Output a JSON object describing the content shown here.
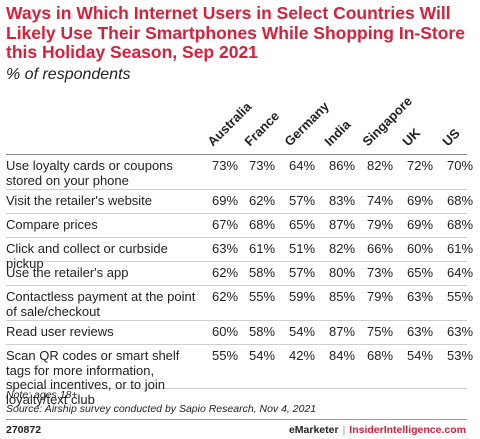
{
  "chart_data": {
    "type": "table",
    "title": "Ways in Which Internet Users in Select Countries Will Likely Use Their Smartphones While Shopping In-Store this Holiday Season, Sep 2021",
    "subtitle": "% of respondents",
    "columns": [
      "Australia",
      "France",
      "Germany",
      "India",
      "Singapore",
      "UK",
      "US"
    ],
    "rows": [
      {
        "label": "Use loyalty cards or coupons stored on your phone",
        "values": [
          "73%",
          "73%",
          "64%",
          "86%",
          "82%",
          "72%",
          "70%"
        ]
      },
      {
        "label": "Visit the retailer's website",
        "values": [
          "69%",
          "62%",
          "57%",
          "83%",
          "74%",
          "69%",
          "68%"
        ]
      },
      {
        "label": "Compare prices",
        "values": [
          "67%",
          "68%",
          "65%",
          "87%",
          "79%",
          "69%",
          "68%"
        ]
      },
      {
        "label": "Click and collect or curbside pickup",
        "values": [
          "63%",
          "61%",
          "51%",
          "82%",
          "66%",
          "60%",
          "61%"
        ]
      },
      {
        "label": "Use the retailer's app",
        "values": [
          "62%",
          "58%",
          "57%",
          "80%",
          "73%",
          "65%",
          "64%"
        ]
      },
      {
        "label": "Contactless payment at the point of sale/checkout",
        "values": [
          "62%",
          "55%",
          "59%",
          "85%",
          "79%",
          "63%",
          "55%"
        ]
      },
      {
        "label": "Read user reviews",
        "values": [
          "60%",
          "58%",
          "54%",
          "87%",
          "75%",
          "63%",
          "63%"
        ]
      },
      {
        "label": "Scan QR codes or smart shelf tags for more information, special incentives, or to join loyalty/text club",
        "values": [
          "55%",
          "54%",
          "42%",
          "84%",
          "68%",
          "54%",
          "53%"
        ]
      }
    ]
  },
  "notes": {
    "note": "Note: ages 18+",
    "source": "Source: Airship survey conducted by Sapio Research, Nov 4, 2021"
  },
  "footer": {
    "chart_id": "270872",
    "brand": "eMarketer",
    "separator": "|",
    "brand2": "InsiderIntelligence.com"
  },
  "colors": {
    "title": "#d6213b",
    "text": "#222222",
    "grid": "#cfcfcf"
  }
}
